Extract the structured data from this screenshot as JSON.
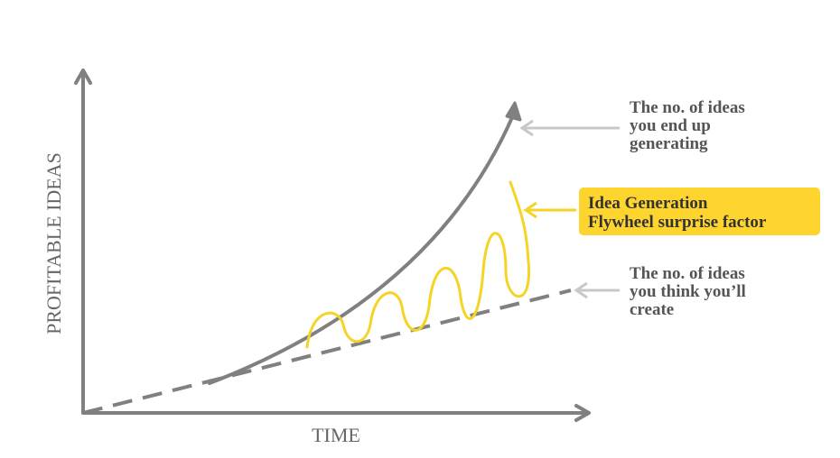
{
  "diagram": {
    "y_axis_label": "PROFITABLE IDEAS",
    "x_axis_label": "TIME",
    "annotations": [
      {
        "lines": [
          "The no. of ideas",
          "you end up",
          "generating"
        ]
      },
      {
        "lines": [
          "Idea Generation",
          "Flywheel surprise factor"
        ]
      },
      {
        "lines": [
          "The no. of ideas",
          "you think you’ll",
          "create"
        ]
      }
    ]
  }
}
